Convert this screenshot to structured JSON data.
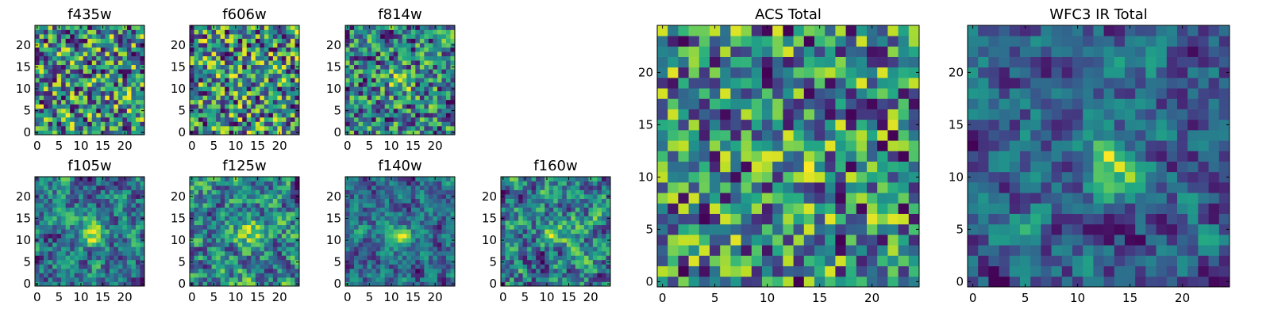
{
  "chart_data": {
    "type": "heatmap",
    "colormap": "viridis",
    "grid": false,
    "panels": [
      {
        "id": "f435w",
        "title": "f435w",
        "grid_size": 25,
        "seed": 11,
        "source_strength": 0.0,
        "smoothness": 0.0,
        "source_center": [
          13,
          12
        ],
        "xlim": [
          -0.5,
          24.5
        ],
        "ylim": [
          -0.5,
          24.5
        ],
        "xticks": [
          0,
          5,
          10,
          15,
          20
        ],
        "yticks": [
          0,
          5,
          10,
          15,
          20
        ]
      },
      {
        "id": "f606w",
        "title": "f606w",
        "grid_size": 25,
        "seed": 23,
        "source_strength": 0.05,
        "smoothness": 0.0,
        "source_center": [
          13,
          12
        ],
        "xlim": [
          -0.5,
          24.5
        ],
        "ylim": [
          -0.5,
          24.5
        ],
        "xticks": [
          0,
          5,
          10,
          15,
          20
        ],
        "yticks": [
          0,
          5,
          10,
          15,
          20
        ]
      },
      {
        "id": "f814w",
        "title": "f814w",
        "grid_size": 25,
        "seed": 37,
        "source_strength": 0.35,
        "smoothness": 0.1,
        "source_center": [
          12,
          11
        ],
        "xlim": [
          -0.5,
          24.5
        ],
        "ylim": [
          -0.5,
          24.5
        ],
        "xticks": [
          0,
          5,
          10,
          15,
          20
        ],
        "yticks": [
          0,
          5,
          10,
          15,
          20
        ]
      },
      {
        "id": "f105w",
        "title": "f105w",
        "grid_size": 25,
        "seed": 41,
        "source_strength": 0.6,
        "smoothness": 0.5,
        "source_center": [
          13,
          12
        ],
        "xlim": [
          -0.5,
          24.5
        ],
        "ylim": [
          -0.5,
          24.5
        ],
        "xticks": [
          0,
          5,
          10,
          15,
          20
        ],
        "yticks": [
          0,
          5,
          10,
          15,
          20
        ]
      },
      {
        "id": "f125w",
        "title": "f125w",
        "grid_size": 25,
        "seed": 53,
        "source_strength": 0.35,
        "smoothness": 0.5,
        "source_center": [
          14,
          11
        ],
        "xlim": [
          -0.5,
          24.5
        ],
        "ylim": [
          -0.5,
          24.5
        ],
        "xticks": [
          0,
          5,
          10,
          15,
          20
        ],
        "yticks": [
          0,
          5,
          10,
          15,
          20
        ]
      },
      {
        "id": "f140w",
        "title": "f140w",
        "grid_size": 25,
        "seed": 67,
        "source_strength": 0.4,
        "smoothness": 0.55,
        "source_center": [
          12,
          11
        ],
        "xlim": [
          -0.5,
          24.5
        ],
        "ylim": [
          -0.5,
          24.5
        ],
        "xticks": [
          0,
          5,
          10,
          15,
          20
        ],
        "yticks": [
          0,
          5,
          10,
          15,
          20
        ]
      },
      {
        "id": "f160w",
        "title": "f160w",
        "grid_size": 25,
        "seed": 79,
        "source_strength": 0.35,
        "smoothness": 0.5,
        "source_center": [
          13,
          12
        ],
        "xlim": [
          -0.5,
          24.5
        ],
        "ylim": [
          -0.5,
          24.5
        ],
        "xticks": [
          0,
          5,
          10,
          15,
          20
        ],
        "yticks": [
          0,
          5,
          10,
          15,
          20
        ]
      },
      {
        "id": "acs-total",
        "title": "ACS Total",
        "grid_size": 25,
        "seed": 97,
        "source_strength": 0.15,
        "smoothness": 0.0,
        "source_center": [
          13,
          12
        ],
        "xlim": [
          -0.5,
          24.5
        ],
        "ylim": [
          -0.5,
          24.5
        ],
        "xticks": [
          0,
          5,
          10,
          15,
          20
        ],
        "yticks": [
          0,
          5,
          10,
          15,
          20
        ]
      },
      {
        "id": "wfc3-ir-total",
        "title": "WFC3 IR Total",
        "grid_size": 25,
        "seed": 131,
        "source_strength": 0.55,
        "smoothness": 0.6,
        "source_center": [
          13,
          11
        ],
        "xlim": [
          -0.5,
          24.5
        ],
        "ylim": [
          -0.5,
          24.5
        ],
        "xticks": [
          0,
          5,
          10,
          15,
          20
        ],
        "yticks": [
          0,
          5,
          10,
          15,
          20
        ]
      }
    ]
  }
}
